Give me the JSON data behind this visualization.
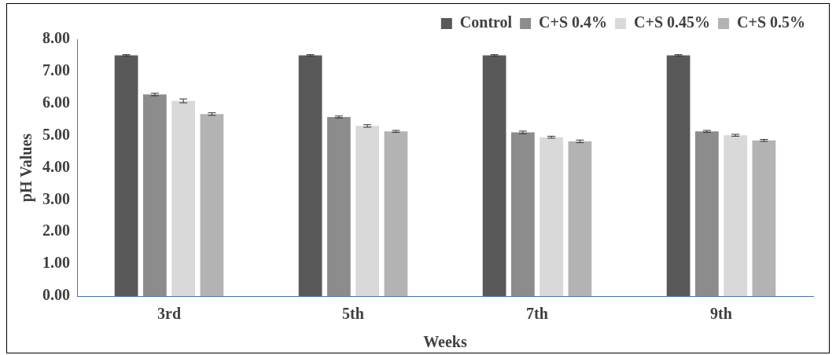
{
  "chart_data": {
    "type": "bar",
    "xlabel": "Weeks",
    "ylabel": "pH Values",
    "categories": [
      "3rd",
      "5th",
      "7th",
      "9th"
    ],
    "series": [
      {
        "name": "Control",
        "color": "#595959",
        "values": [
          7.5,
          7.5,
          7.5,
          7.5
        ],
        "errors": [
          0.02,
          0.02,
          0.02,
          0.02
        ]
      },
      {
        "name": "C+S 0.4%",
        "color": "#8c8c8c",
        "values": [
          6.28,
          5.58,
          5.1,
          5.13
        ],
        "errors": [
          0.04,
          0.03,
          0.04,
          0.03
        ]
      },
      {
        "name": "C+S 0.45%",
        "color": "#d9d9d9",
        "values": [
          6.08,
          5.3,
          4.95,
          5.01
        ],
        "errors": [
          0.06,
          0.04,
          0.03,
          0.03
        ]
      },
      {
        "name": "C+S 0.5%",
        "color": "#b3b3b3",
        "values": [
          5.67,
          5.13,
          4.82,
          4.85
        ],
        "errors": [
          0.04,
          0.03,
          0.04,
          0.03
        ]
      }
    ],
    "ylim": [
      0,
      8
    ],
    "yticks": [
      {
        "value": 0,
        "label": "0.00"
      },
      {
        "value": 1,
        "label": "1.00"
      },
      {
        "value": 2,
        "label": "2.00"
      },
      {
        "value": 3,
        "label": "3.00"
      },
      {
        "value": 4,
        "label": "4.00"
      },
      {
        "value": 5,
        "label": "5.00"
      },
      {
        "value": 6,
        "label": "6.00"
      },
      {
        "value": 7,
        "label": "7.00"
      },
      {
        "value": 8,
        "label": "8.00"
      }
    ],
    "grid": false,
    "legend": "top right"
  }
}
